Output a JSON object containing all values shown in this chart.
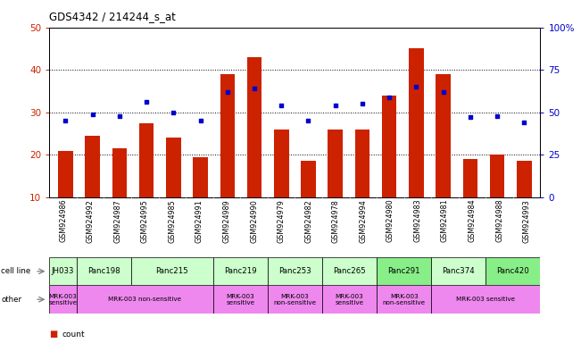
{
  "title": "GDS4342 / 214244_s_at",
  "samples": [
    "GSM924986",
    "GSM924992",
    "GSM924987",
    "GSM924995",
    "GSM924985",
    "GSM924991",
    "GSM924989",
    "GSM924990",
    "GSM924979",
    "GSM924982",
    "GSM924978",
    "GSM924994",
    "GSM924980",
    "GSM924983",
    "GSM924981",
    "GSM924984",
    "GSM924988",
    "GSM924993"
  ],
  "counts": [
    21,
    24.5,
    21.5,
    27.5,
    24,
    19.5,
    39,
    43,
    26,
    18.5,
    26,
    26,
    34,
    45,
    39,
    19,
    20,
    18.5
  ],
  "percentiles": [
    45,
    49,
    48,
    56,
    50,
    45,
    62,
    64,
    54,
    45,
    54,
    55,
    59,
    65,
    62,
    47,
    48,
    44
  ],
  "cell_line_groups": [
    {
      "label": "JH033",
      "start": 0,
      "end": 1,
      "color": "#ccffcc"
    },
    {
      "label": "Panc198",
      "start": 1,
      "end": 3,
      "color": "#ccffcc"
    },
    {
      "label": "Panc215",
      "start": 3,
      "end": 6,
      "color": "#ccffcc"
    },
    {
      "label": "Panc219",
      "start": 6,
      "end": 8,
      "color": "#ccffcc"
    },
    {
      "label": "Panc253",
      "start": 8,
      "end": 10,
      "color": "#ccffcc"
    },
    {
      "label": "Panc265",
      "start": 10,
      "end": 12,
      "color": "#ccffcc"
    },
    {
      "label": "Panc291",
      "start": 12,
      "end": 14,
      "color": "#88ee88"
    },
    {
      "label": "Panc374",
      "start": 14,
      "end": 16,
      "color": "#ccffcc"
    },
    {
      "label": "Panc420",
      "start": 16,
      "end": 18,
      "color": "#88ee88"
    }
  ],
  "other_groups": [
    {
      "label": "MRK-003\nsensitive",
      "start": 0,
      "end": 1,
      "color": "#ee88ee"
    },
    {
      "label": "MRK-003 non-sensitive",
      "start": 1,
      "end": 6,
      "color": "#ee88ee"
    },
    {
      "label": "MRK-003\nsensitive",
      "start": 6,
      "end": 8,
      "color": "#ee88ee"
    },
    {
      "label": "MRK-003\nnon-sensitive",
      "start": 8,
      "end": 10,
      "color": "#ee88ee"
    },
    {
      "label": "MRK-003\nsensitive",
      "start": 10,
      "end": 12,
      "color": "#ee88ee"
    },
    {
      "label": "MRK-003\nnon-sensitive",
      "start": 12,
      "end": 14,
      "color": "#ee88ee"
    },
    {
      "label": "MRK-003 sensitive",
      "start": 14,
      "end": 18,
      "color": "#ee88ee"
    }
  ],
  "ylim_left": [
    10,
    50
  ],
  "ylim_right": [
    0,
    100
  ],
  "yticks_left": [
    10,
    20,
    30,
    40,
    50
  ],
  "yticks_right": [
    0,
    25,
    50,
    75,
    100
  ],
  "bar_color": "#cc2200",
  "dot_color": "#0000cc",
  "left_tick_color": "#cc2200",
  "right_tick_color": "#0000cc",
  "tick_bg_color": "#dddddd"
}
